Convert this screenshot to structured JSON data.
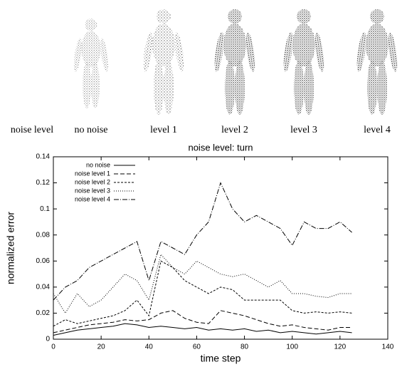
{
  "figure_labels": [
    "noise level",
    "no noise",
    "level 1",
    "level 2",
    "level 3",
    "level 4"
  ],
  "chart_data": {
    "type": "line",
    "title": "noise level: turn",
    "x_label": "time step",
    "y_label": "normalized error",
    "x": [
      0,
      5,
      10,
      15,
      20,
      25,
      30,
      35,
      40,
      45,
      50,
      55,
      60,
      65,
      70,
      75,
      80,
      85,
      90,
      95,
      100,
      105,
      110,
      115,
      120,
      125
    ],
    "series": [
      {
        "name": "no noise",
        "color": "#000000",
        "dash": "none",
        "values": [
          0.003,
          0.005,
          0.007,
          0.008,
          0.009,
          0.01,
          0.012,
          0.011,
          0.009,
          0.01,
          0.009,
          0.008,
          0.009,
          0.007,
          0.008,
          0.007,
          0.008,
          0.006,
          0.007,
          0.005,
          0.006,
          0.005,
          0.004,
          0.005,
          0.006,
          0.005
        ]
      },
      {
        "name": "noise level 1",
        "color": "#000000",
        "dash": "6,3",
        "values": [
          0.005,
          0.007,
          0.009,
          0.011,
          0.012,
          0.013,
          0.015,
          0.014,
          0.015,
          0.02,
          0.022,
          0.016,
          0.013,
          0.012,
          0.022,
          0.02,
          0.018,
          0.015,
          0.012,
          0.01,
          0.011,
          0.009,
          0.008,
          0.007,
          0.009,
          0.009
        ]
      },
      {
        "name": "noise level 2",
        "color": "#000000",
        "dash": "3,2",
        "values": [
          0.01,
          0.015,
          0.012,
          0.014,
          0.016,
          0.018,
          0.022,
          0.03,
          0.018,
          0.06,
          0.055,
          0.045,
          0.04,
          0.035,
          0.04,
          0.038,
          0.03,
          0.03,
          0.03,
          0.03,
          0.022,
          0.02,
          0.021,
          0.02,
          0.021,
          0.02
        ]
      },
      {
        "name": "noise level 3",
        "color": "#000000",
        "dash": "1,2",
        "values": [
          0.035,
          0.02,
          0.035,
          0.025,
          0.03,
          0.04,
          0.05,
          0.045,
          0.03,
          0.065,
          0.055,
          0.05,
          0.06,
          0.055,
          0.05,
          0.048,
          0.05,
          0.045,
          0.04,
          0.045,
          0.035,
          0.035,
          0.033,
          0.032,
          0.035,
          0.035
        ]
      },
      {
        "name": "noise level 4",
        "color": "#000000",
        "dash": "7,2,1,2",
        "values": [
          0.03,
          0.04,
          0.045,
          0.055,
          0.06,
          0.065,
          0.07,
          0.075,
          0.045,
          0.075,
          0.07,
          0.065,
          0.08,
          0.09,
          0.12,
          0.1,
          0.09,
          0.095,
          0.09,
          0.085,
          0.072,
          0.09,
          0.085,
          0.085,
          0.09,
          0.082
        ]
      }
    ],
    "xlim": [
      0,
      140
    ],
    "xticks": [
      0,
      20,
      40,
      60,
      80,
      100,
      120,
      140
    ],
    "ylim": [
      0,
      0.14
    ],
    "yticks": [
      0,
      0.02,
      0.04,
      0.06,
      0.08,
      0.1,
      0.12,
      0.14
    ],
    "legend": "upper-left",
    "grid": false
  }
}
